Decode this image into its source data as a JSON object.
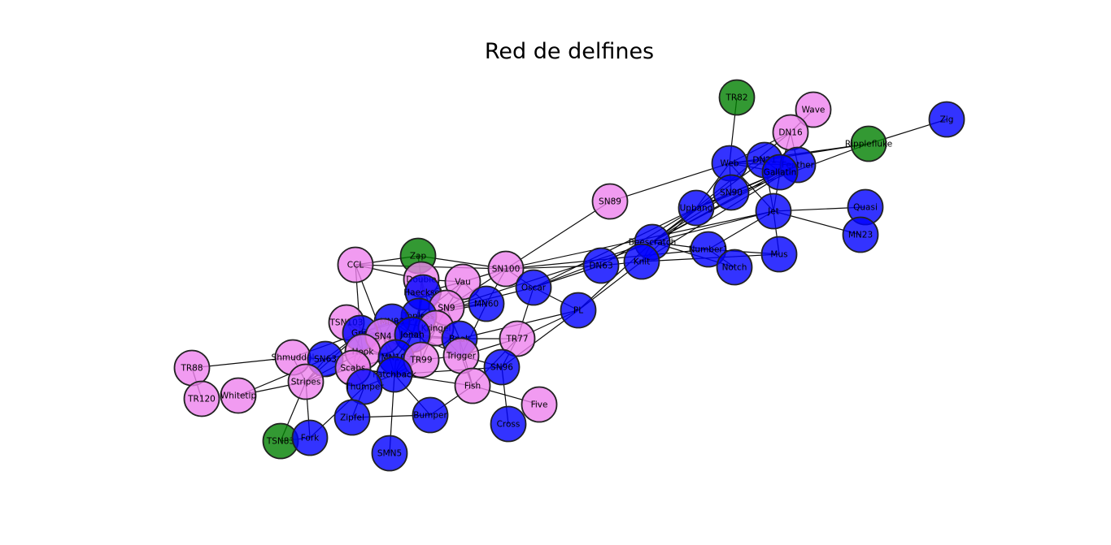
{
  "title": "Red de delfines",
  "colors": {
    "group_pink": "#ee82ee",
    "group_blue": "#0000ff",
    "group_green": "#008000",
    "edge": "#000000",
    "node_border": "#222222"
  },
  "nodes": [
    {
      "id": "TR82",
      "group": "green"
    },
    {
      "id": "Wave",
      "group": "pink"
    },
    {
      "id": "Zig",
      "group": "blue"
    },
    {
      "id": "DN16",
      "group": "pink"
    },
    {
      "id": "Ripplefluke",
      "group": "green"
    },
    {
      "id": "Web",
      "group": "blue"
    },
    {
      "id": "DN21",
      "group": "blue"
    },
    {
      "id": "Feather",
      "group": "blue"
    },
    {
      "id": "Gallatin",
      "group": "blue"
    },
    {
      "id": "SN90",
      "group": "blue"
    },
    {
      "id": "SN89",
      "group": "pink"
    },
    {
      "id": "Upbang",
      "group": "blue"
    },
    {
      "id": "Jet",
      "group": "blue"
    },
    {
      "id": "Quasi",
      "group": "blue"
    },
    {
      "id": "MN23",
      "group": "blue"
    },
    {
      "id": "Beescratch",
      "group": "blue"
    },
    {
      "id": "Number1",
      "group": "blue"
    },
    {
      "id": "Mus",
      "group": "blue"
    },
    {
      "id": "Notch",
      "group": "blue"
    },
    {
      "id": "Knit",
      "group": "blue"
    },
    {
      "id": "DN63",
      "group": "blue"
    },
    {
      "id": "SN100",
      "group": "pink"
    },
    {
      "id": "Oscar",
      "group": "blue"
    },
    {
      "id": "PL",
      "group": "blue"
    },
    {
      "id": "Zap",
      "group": "green"
    },
    {
      "id": "CCL",
      "group": "pink"
    },
    {
      "id": "Double",
      "group": "pink"
    },
    {
      "id": "Vau",
      "group": "pink"
    },
    {
      "id": "Haecksel",
      "group": "blue"
    },
    {
      "id": "MN60",
      "group": "blue"
    },
    {
      "id": "SN9",
      "group": "pink"
    },
    {
      "id": "Topless",
      "group": "blue"
    },
    {
      "id": "MN83",
      "group": "blue"
    },
    {
      "id": "TSN103",
      "group": "pink"
    },
    {
      "id": "Kringel",
      "group": "pink"
    },
    {
      "id": "Grin",
      "group": "blue"
    },
    {
      "id": "SN4",
      "group": "pink"
    },
    {
      "id": "Jonah",
      "group": "blue"
    },
    {
      "id": "Beak",
      "group": "blue"
    },
    {
      "id": "TR77",
      "group": "pink"
    },
    {
      "id": "Hook",
      "group": "pink"
    },
    {
      "id": "MN105",
      "group": "blue"
    },
    {
      "id": "TR99",
      "group": "pink"
    },
    {
      "id": "Trigger",
      "group": "pink"
    },
    {
      "id": "Shmuddel",
      "group": "pink"
    },
    {
      "id": "SN63",
      "group": "blue"
    },
    {
      "id": "TR88",
      "group": "pink"
    },
    {
      "id": "Scabs",
      "group": "pink"
    },
    {
      "id": "Patchback",
      "group": "blue"
    },
    {
      "id": "SN96",
      "group": "blue"
    },
    {
      "id": "Stripes",
      "group": "pink"
    },
    {
      "id": "Thumper",
      "group": "blue"
    },
    {
      "id": "Fish",
      "group": "pink"
    },
    {
      "id": "TR120",
      "group": "pink"
    },
    {
      "id": "Whitetip",
      "group": "pink"
    },
    {
      "id": "Five",
      "group": "pink"
    },
    {
      "id": "Zipfel",
      "group": "blue"
    },
    {
      "id": "Bumper",
      "group": "blue"
    },
    {
      "id": "Cross",
      "group": "blue"
    },
    {
      "id": "TSN83",
      "group": "green"
    },
    {
      "id": "Fork",
      "group": "blue"
    },
    {
      "id": "SMN5",
      "group": "blue"
    }
  ],
  "edges": [
    [
      "TR82",
      "Web"
    ],
    [
      "Wave",
      "DN16"
    ],
    [
      "DN16",
      "Web"
    ],
    [
      "DN16",
      "Feather"
    ],
    [
      "DN16",
      "Gallatin"
    ],
    [
      "DN16",
      "Upbang"
    ],
    [
      "Zig",
      "Ripplefluke"
    ],
    [
      "Ripplefluke",
      "Web"
    ],
    [
      "Ripplefluke",
      "Upbang"
    ],
    [
      "Ripplefluke",
      "DN21"
    ],
    [
      "Web",
      "DN21"
    ],
    [
      "Web",
      "Feather"
    ],
    [
      "Web",
      "Gallatin"
    ],
    [
      "Web",
      "SN90"
    ],
    [
      "Web",
      "SN89"
    ],
    [
      "Web",
      "Jet"
    ],
    [
      "Web",
      "Upbang"
    ],
    [
      "DN21",
      "Feather"
    ],
    [
      "DN21",
      "Gallatin"
    ],
    [
      "DN21",
      "Jet"
    ],
    [
      "DN21",
      "Beescratch"
    ],
    [
      "Feather",
      "Gallatin"
    ],
    [
      "Feather",
      "Upbang"
    ],
    [
      "Feather",
      "Beescratch"
    ],
    [
      "Feather",
      "Knit"
    ],
    [
      "Gallatin",
      "SN90"
    ],
    [
      "Gallatin",
      "Jet"
    ],
    [
      "Gallatin",
      "Upbang"
    ],
    [
      "Gallatin",
      "Beescratch"
    ],
    [
      "SN90",
      "Upbang"
    ],
    [
      "SN90",
      "Beescratch"
    ],
    [
      "SN89",
      "SN100"
    ],
    [
      "Upbang",
      "Beescratch"
    ],
    [
      "Upbang",
      "Knit"
    ],
    [
      "Upbang",
      "DN63"
    ],
    [
      "Upbang",
      "Oscar"
    ],
    [
      "Jet",
      "Quasi"
    ],
    [
      "Jet",
      "MN23"
    ],
    [
      "Jet",
      "Mus"
    ],
    [
      "Jet",
      "Beescratch"
    ],
    [
      "Jet",
      "Number1"
    ],
    [
      "Jet",
      "SN100"
    ],
    [
      "Beescratch",
      "Number1"
    ],
    [
      "Beescratch",
      "Notch"
    ],
    [
      "Beescratch",
      "Knit"
    ],
    [
      "Beescratch",
      "Oscar"
    ],
    [
      "Beescratch",
      "PL"
    ],
    [
      "Beescratch",
      "SN9"
    ],
    [
      "Number1",
      "Mus"
    ],
    [
      "Number1",
      "Notch"
    ],
    [
      "Mus",
      "Knit"
    ],
    [
      "Knit",
      "DN63"
    ],
    [
      "Knit",
      "PL"
    ],
    [
      "DN63",
      "SN100"
    ],
    [
      "DN63",
      "Oscar"
    ],
    [
      "SN100",
      "CCL"
    ],
    [
      "SN100",
      "Vau"
    ],
    [
      "SN100",
      "SN9"
    ],
    [
      "SN100",
      "Oscar"
    ],
    [
      "SN100",
      "MN60"
    ],
    [
      "SN100",
      "Number1"
    ],
    [
      "Oscar",
      "PL"
    ],
    [
      "Oscar",
      "TR77"
    ],
    [
      "Oscar",
      "Topless"
    ],
    [
      "PL",
      "SN96"
    ],
    [
      "PL",
      "TR77"
    ],
    [
      "PL",
      "Beak"
    ],
    [
      "Zap",
      "CCL"
    ],
    [
      "Zap",
      "Double"
    ],
    [
      "Zap",
      "Haecksel"
    ],
    [
      "Zap",
      "SN100"
    ],
    [
      "CCL",
      "Double"
    ],
    [
      "CCL",
      "Grin"
    ],
    [
      "CCL",
      "SN4"
    ],
    [
      "Double",
      "Vau"
    ],
    [
      "Double",
      "Haecksel"
    ],
    [
      "Double",
      "Topless"
    ],
    [
      "Double",
      "Kringel"
    ],
    [
      "Vau",
      "SN9"
    ],
    [
      "Vau",
      "MN60"
    ],
    [
      "Vau",
      "Haecksel"
    ],
    [
      "Vau",
      "Topless"
    ],
    [
      "Haecksel",
      "SN9"
    ],
    [
      "Haecksel",
      "Topless"
    ],
    [
      "Haecksel",
      "Jonah"
    ],
    [
      "MN60",
      "SN9"
    ],
    [
      "MN60",
      "Topless"
    ],
    [
      "MN60",
      "Trigger"
    ],
    [
      "SN9",
      "Topless"
    ],
    [
      "SN9",
      "Kringel"
    ],
    [
      "SN9",
      "Beak"
    ],
    [
      "Topless",
      "MN83"
    ],
    [
      "Topless",
      "Kringel"
    ],
    [
      "Topless",
      "Jonah"
    ],
    [
      "Topless",
      "Grin"
    ],
    [
      "Topless",
      "SN4"
    ],
    [
      "Topless",
      "TR99"
    ],
    [
      "MN83",
      "Grin"
    ],
    [
      "MN83",
      "SN4"
    ],
    [
      "MN83",
      "Jonah"
    ],
    [
      "MN83",
      "Kringel"
    ],
    [
      "TSN103",
      "Grin"
    ],
    [
      "TSN103",
      "SN4"
    ],
    [
      "TSN103",
      "Hook"
    ],
    [
      "Kringel",
      "Beak"
    ],
    [
      "Kringel",
      "Jonah"
    ],
    [
      "Kringel",
      "Trigger"
    ],
    [
      "Kringel",
      "TR99"
    ],
    [
      "Kringel",
      "Patchback"
    ],
    [
      "Grin",
      "SN4"
    ],
    [
      "Grin",
      "Hook"
    ],
    [
      "Grin",
      "Shmuddel"
    ],
    [
      "Grin",
      "SN63"
    ],
    [
      "Grin",
      "Scabs"
    ],
    [
      "Grin",
      "Stripes"
    ],
    [
      "Grin",
      "Jonah"
    ],
    [
      "SN4",
      "Jonah"
    ],
    [
      "SN4",
      "Hook"
    ],
    [
      "SN4",
      "MN105"
    ],
    [
      "SN4",
      "Scabs"
    ],
    [
      "SN4",
      "Patchback"
    ],
    [
      "SN4",
      "TR99"
    ],
    [
      "SN4",
      "Beak"
    ],
    [
      "Jonah",
      "MN105"
    ],
    [
      "Jonah",
      "Trigger"
    ],
    [
      "Jonah",
      "Beak"
    ],
    [
      "Jonah",
      "Patchback"
    ],
    [
      "Beak",
      "TR77"
    ],
    [
      "Beak",
      "Trigger"
    ],
    [
      "Beak",
      "Fish"
    ],
    [
      "TR77",
      "Trigger"
    ],
    [
      "TR77",
      "SN96"
    ],
    [
      "TR77",
      "Fish"
    ],
    [
      "Hook",
      "SN63"
    ],
    [
      "Hook",
      "Scabs"
    ],
    [
      "Hook",
      "MN105"
    ],
    [
      "Hook",
      "Stripes"
    ],
    [
      "MN105",
      "TR99"
    ],
    [
      "MN105",
      "Patchback"
    ],
    [
      "MN105",
      "Scabs"
    ],
    [
      "TR99",
      "Trigger"
    ],
    [
      "TR99",
      "Patchback"
    ],
    [
      "Trigger",
      "SN96"
    ],
    [
      "Trigger",
      "Fish"
    ],
    [
      "Shmuddel",
      "TR88"
    ],
    [
      "Shmuddel",
      "SN63"
    ],
    [
      "Shmuddel",
      "Stripes"
    ],
    [
      "SN63",
      "Stripes"
    ],
    [
      "SN63",
      "Scabs"
    ],
    [
      "SN63",
      "Whitetip"
    ],
    [
      "Scabs",
      "Stripes"
    ],
    [
      "Scabs",
      "Thumper"
    ],
    [
      "Scabs",
      "Patchback"
    ],
    [
      "Scabs",
      "Fish"
    ],
    [
      "Patchback",
      "SN96"
    ],
    [
      "Patchback",
      "Thumper"
    ],
    [
      "Patchback",
      "SMN5"
    ],
    [
      "Patchback",
      "Bumper"
    ],
    [
      "SN96",
      "Cross"
    ],
    [
      "Stripes",
      "Whitetip"
    ],
    [
      "Stripes",
      "TSN83"
    ],
    [
      "Stripes",
      "Fork"
    ],
    [
      "Thumper",
      "Zipfel"
    ],
    [
      "Thumper",
      "Fork"
    ],
    [
      "Fish",
      "Five"
    ],
    [
      "Fish",
      "Bumper"
    ],
    [
      "Zipfel",
      "Bumper"
    ],
    [
      "TR88",
      "TR120"
    ],
    [
      "TSN83",
      "Fork"
    ]
  ]
}
